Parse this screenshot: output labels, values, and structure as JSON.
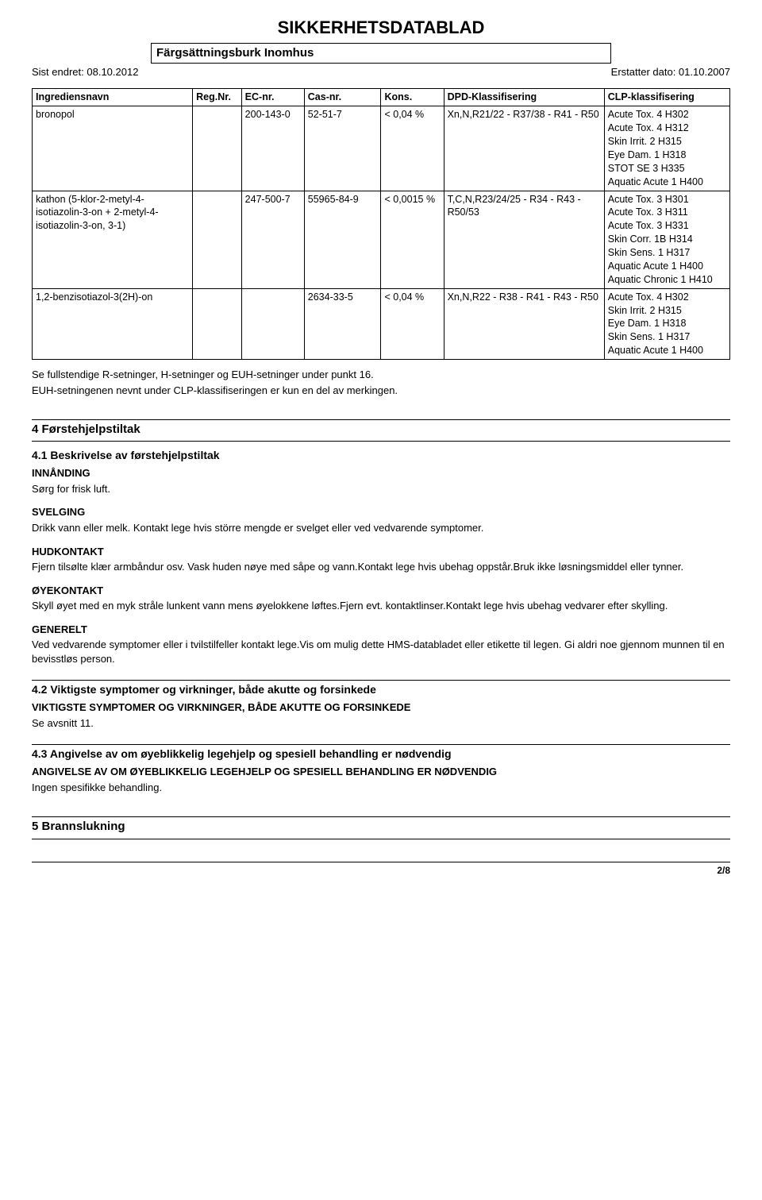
{
  "header": {
    "main_title": "SIKKERHETSDATABLAD",
    "subtitle": "Färgsättningsburk Inomhus",
    "last_changed_label": "Sist endret: 08.10.2012",
    "replaces_label": "Erstatter dato: 01.10.2007"
  },
  "ingredients_table": {
    "headers": {
      "name": "Ingrediensnavn",
      "reg": "Reg.Nr.",
      "ec": "EC-nr.",
      "cas": "Cas-nr.",
      "kons": "Kons.",
      "dpd": "DPD-Klassifisering",
      "clp": "CLP-klassifisering"
    },
    "rows": [
      {
        "name": "bronopol",
        "reg": "",
        "ec": "200-143-0",
        "cas": "52-51-7",
        "kons": "< 0,04 %",
        "dpd": "Xn,N,R21/22 - R37/38 - R41 - R50",
        "clp": "Acute Tox. 4 H302\nAcute Tox. 4 H312\nSkin Irrit. 2 H315\nEye Dam. 1 H318\nSTOT SE 3 H335\nAquatic Acute 1 H400"
      },
      {
        "name": "kathon (5-klor-2-metyl-4-isotiazolin-3-on + 2-metyl-4-isotiazolin-3-on, 3-1)",
        "reg": "",
        "ec": "247-500-7",
        "cas": "55965-84-9",
        "kons": "< 0,0015 %",
        "dpd": "T,C,N,R23/24/25 - R34 - R43 - R50/53",
        "clp": "Acute Tox. 3 H301\nAcute Tox. 3 H311\nAcute Tox. 3 H331\nSkin Corr. 1B H314\nSkin Sens. 1 H317\nAquatic Acute 1 H400\nAquatic Chronic 1 H410"
      },
      {
        "name": "1,2-benzisotiazol-3(2H)-on",
        "reg": "",
        "ec": "",
        "cas": "2634-33-5",
        "kons": "< 0,04 %",
        "dpd": "Xn,N,R22 - R38 - R41 - R43 - R50",
        "clp": "Acute Tox. 4 H302\nSkin Irrit. 2 H315\nEye Dam. 1 H318\nSkin Sens. 1 H317\nAquatic Acute 1 H400"
      }
    ]
  },
  "table_notes": {
    "line1": "Se fullstendige R-setninger, H-setninger og EUH-setninger under punkt 16.",
    "line2": "EUH-setningenen nevnt under CLP-klassifiseringen er kun en del av merkingen."
  },
  "section4": {
    "title": "4 Førstehjelpstiltak",
    "s41": {
      "heading": "4.1 Beskrivelse av førstehjelpstiltak",
      "inhale_h": "INNÅNDING",
      "inhale_t": "Sørg for frisk luft.",
      "swallow_h": "SVELGING",
      "swallow_t": "Drikk vann eller melk. Kontakt lege hvis större mengde er svelget eller ved vedvarende symptomer.",
      "skin_h": "HUDKONTAKT",
      "skin_t": "Fjern tilsølte klær armbåndur osv. Vask huden nøye med såpe og vann.Kontakt lege hvis ubehag oppstår.Bruk ikke løsningsmiddel eller tynner.",
      "eye_h": "ØYEKONTAKT",
      "eye_t": "Skyll øyet med en myk stråle lunkent vann mens øyelokkene løftes.Fjern evt. kontaktlinser.Kontakt lege hvis ubehag vedvarer efter skylling.",
      "gen_h": "GENERELT",
      "gen_t": "Ved vedvarende symptomer eller i tvilstilfeller kontakt lege.Vis om mulig dette HMS-databladet eller etikette til legen. Gi aldri noe gjennom munnen til en bevisstløs person."
    },
    "s42": {
      "heading": "4.2 Viktigste symptomer og virkninger, både akutte og forsinkede",
      "sub": "VIKTIGSTE SYMPTOMER OG VIRKNINGER, BÅDE AKUTTE OG FORSINKEDE",
      "body": "Se avsnitt 11."
    },
    "s43": {
      "heading": "4.3 Angivelse av om øyeblikkelig legehjelp og spesiell behandling er nødvendig",
      "sub": "ANGIVELSE AV OM ØYEBLIKKELIG LEGEHJELP OG SPESIELL BEHANDLING ER NØDVENDIG",
      "body": "Ingen spesifikke behandling."
    }
  },
  "section5": {
    "title": "5 Brannslukning"
  },
  "footer": {
    "page": "2/8"
  }
}
